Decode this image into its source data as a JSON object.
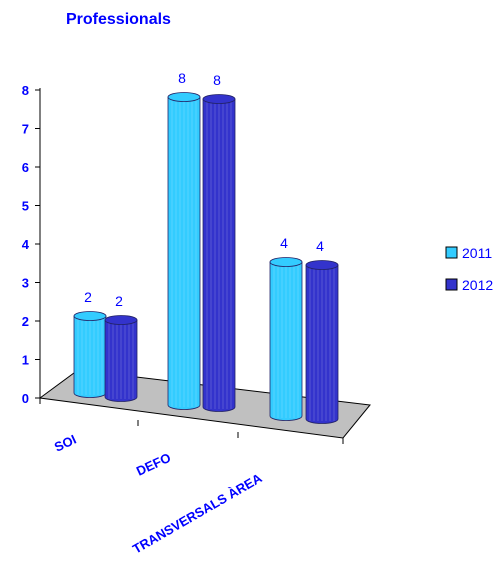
{
  "chart_data": {
    "type": "bar",
    "title": "Professionals",
    "categories": [
      "SOI",
      "DEFO",
      "TRANSVERSALS ÀREA"
    ],
    "series": [
      {
        "name": "2011",
        "values": [
          2,
          8,
          4
        ],
        "color": "#33ccff"
      },
      {
        "name": "2012",
        "values": [
          2,
          8,
          4
        ],
        "color": "#3333cc"
      }
    ],
    "yticks": [
      "0",
      "1",
      "2",
      "3",
      "4",
      "5",
      "6",
      "7",
      "8"
    ],
    "ylim": [
      0,
      8
    ],
    "data_labels": [
      [
        "2",
        "2"
      ],
      [
        "8",
        "8"
      ],
      [
        "4",
        "4"
      ]
    ],
    "legend_position": "right",
    "grid": false,
    "floor_color": "#c0c0c0"
  }
}
